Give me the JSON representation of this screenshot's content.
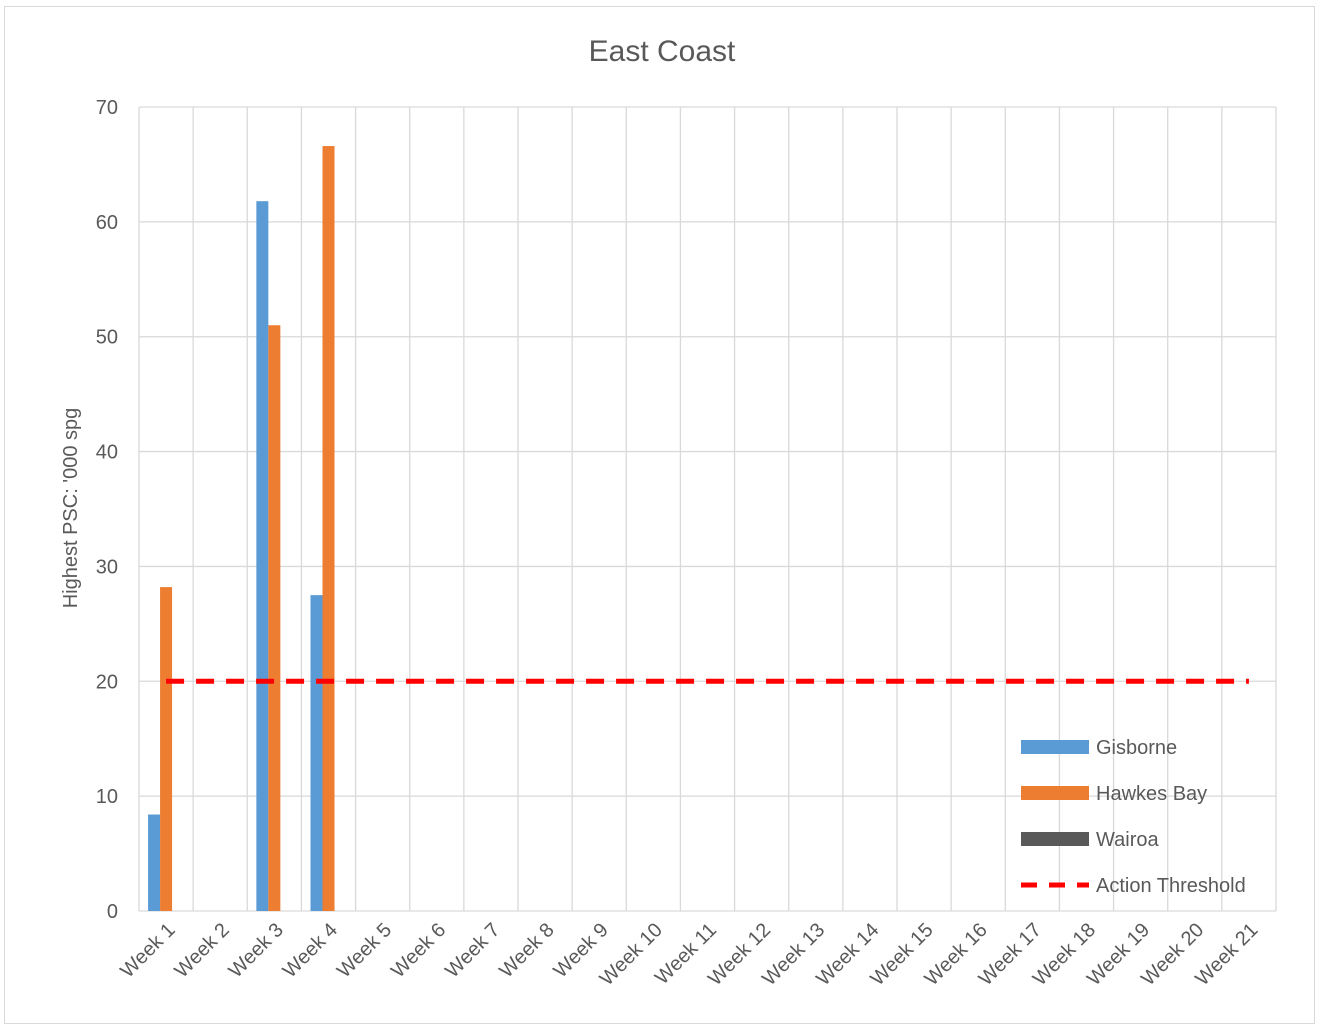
{
  "chart_data": {
    "type": "bar",
    "title": "East Coast",
    "xlabel": "",
    "ylabel": "Highest PSC: '000 spg",
    "ylim": [
      0,
      70
    ],
    "yticks": [
      0,
      10,
      20,
      30,
      40,
      50,
      60,
      70
    ],
    "grid": true,
    "legend_position": "right",
    "categories": [
      "Week 1",
      "Week 2",
      "Week 3",
      "Week 4",
      "Week 5",
      "Week 6",
      "Week 7",
      "Week 8",
      "Week 9",
      "Week 10",
      "Week 11",
      "Week 12",
      "Week 13",
      "Week 14",
      "Week 15",
      "Week 16",
      "Week 17",
      "Week 18",
      "Week 19",
      "Week 20",
      "Week 21"
    ],
    "series": [
      {
        "name": "Gisborne",
        "color": "#5b9bd5",
        "values": [
          8.4,
          null,
          61.8,
          27.5,
          null,
          null,
          null,
          null,
          null,
          null,
          null,
          null,
          null,
          null,
          null,
          null,
          null,
          null,
          null,
          null,
          null
        ]
      },
      {
        "name": "Hawkes Bay",
        "color": "#ed7d31",
        "values": [
          28.2,
          null,
          51.0,
          66.6,
          null,
          null,
          null,
          null,
          null,
          null,
          null,
          null,
          null,
          null,
          null,
          null,
          null,
          null,
          null,
          null,
          null
        ]
      },
      {
        "name": "Wairoa",
        "color": "#595959",
        "values": [
          null,
          null,
          null,
          null,
          null,
          null,
          null,
          null,
          null,
          null,
          null,
          null,
          null,
          null,
          null,
          null,
          null,
          null,
          null,
          null,
          null
        ]
      }
    ],
    "threshold": {
      "name": "Action Threshold",
      "value": 20,
      "color": "#ff0000"
    }
  }
}
